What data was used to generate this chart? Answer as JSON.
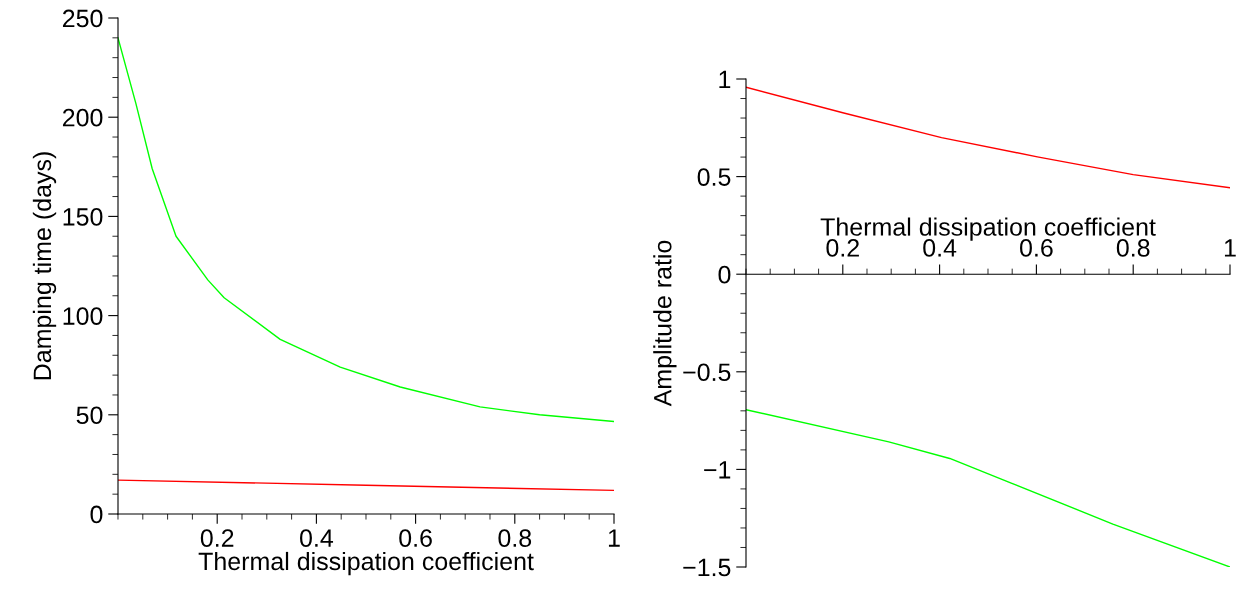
{
  "chart_data": [
    {
      "type": "line",
      "xlabel": "Thermal dissipation coefficient",
      "ylabel": "Damping time (days)",
      "xlim": [
        0,
        1
      ],
      "ylim": [
        0,
        250
      ],
      "xticks": [
        0.2,
        0.4,
        0.6,
        0.8,
        1
      ],
      "yticks": [
        0,
        50,
        100,
        150,
        200,
        250
      ],
      "grid": false,
      "legend": false,
      "marker": "none",
      "line_style": "solid",
      "series": [
        {
          "color": "#00ff00",
          "x": [
            0,
            0.036,
            0.069,
            0.117,
            0.181,
            0.214,
            0.327,
            0.448,
            0.569,
            0.73,
            0.85,
            1
          ],
          "values": [
            240,
            207,
            174,
            140,
            118,
            109,
            88,
            74,
            64,
            54,
            50,
            46.6
          ]
        },
        {
          "color": "#ff0000",
          "x": [
            0,
            0.5,
            1
          ],
          "values": [
            17.1,
            14.5,
            11.9
          ]
        }
      ]
    },
    {
      "type": "line",
      "xlabel": "Thermal dissipation coefficient",
      "ylabel": "Amplitude ratio",
      "xlim": [
        0,
        1
      ],
      "ylim": [
        -1.5,
        1
      ],
      "xticks": [
        0.2,
        0.4,
        0.6,
        0.8,
        1
      ],
      "yticks": [
        {
          "value": -1.5,
          "label": "−1.5"
        },
        {
          "value": -1,
          "label": "−1"
        },
        {
          "value": -0.5,
          "label": "−0.5"
        },
        0,
        0.5,
        1
      ],
      "grid": false,
      "legend": false,
      "marker": "none",
      "line_style": "solid",
      "series": [
        {
          "color": "#ff0000",
          "x": [
            0,
            0.202,
            0.404,
            0.602,
            0.8,
            1
          ],
          "values": [
            0.958,
            0.826,
            0.7,
            0.601,
            0.51,
            0.443
          ]
        },
        {
          "color": "#00ff00",
          "x": [
            0,
            0.295,
            0.421,
            0.548,
            0.758,
            1
          ],
          "values": [
            -0.694,
            -0.859,
            -0.944,
            -1.07,
            -1.28,
            -1.5
          ]
        }
      ]
    }
  ]
}
